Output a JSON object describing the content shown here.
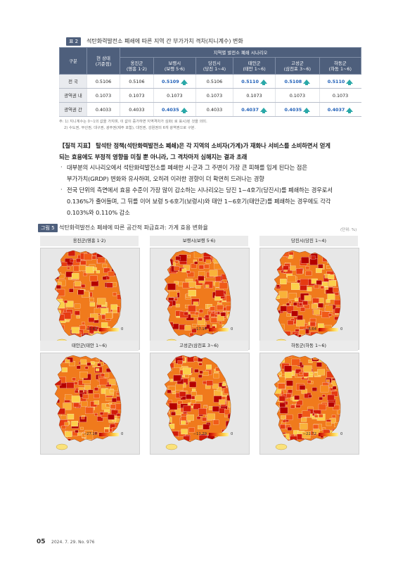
{
  "table2": {
    "tag": "표 2",
    "title": "석탄화력발전소 폐쇄에 따른 지역 간 부가가치 격차(지니계수) 변화",
    "header_category": "구분",
    "header_current": "현 상태\n(기준점)",
    "header_scenario": "지역별 발전소 폐쇄 시나리오",
    "scenarios": [
      "옹진군\n(영흥 1·2)",
      "보령시\n(보령 5·6)",
      "당진시\n(당진 1~4)",
      "태안군\n(태안 1~6)",
      "고성군\n(삼천포 3~6)",
      "하동군\n(하동 1~6)"
    ],
    "rows": [
      {
        "label": "전 국",
        "current": "0.5106",
        "values": [
          "0.5106",
          "0.5109",
          "0.5106",
          "0.5110",
          "0.5108",
          "0.5110"
        ],
        "increase": [
          false,
          true,
          false,
          true,
          true,
          true
        ]
      },
      {
        "label": "광역권 내",
        "current": "0.1073",
        "values": [
          "0.1073",
          "0.1073",
          "0.1073",
          "0.1073",
          "0.1073",
          "0.1073"
        ],
        "increase": [
          false,
          false,
          false,
          false,
          false,
          false
        ]
      },
      {
        "label": "광역권 간",
        "current": "0.4033",
        "values": [
          "0.4033",
          "0.4035",
          "0.4033",
          "0.4037",
          "0.4035",
          "0.4037"
        ],
        "increase": [
          false,
          true,
          false,
          true,
          true,
          true
        ]
      }
    ],
    "note1": "주: 1) 지니계수는 0~1의 값을 가지며, 이 값이 증가하면 지역격차가 심화(   로 표시)된 것을 의미.",
    "note2": "2) 수도권, 부산권, 대구권, 광주권(제주 포함), 대전권, 강원권의 6개 광역권으로 구분."
  },
  "body": {
    "heading_line1": "【질적 지표】 탈석탄 정책(석탄화력발전소 폐쇄)은 각 지역의 소비자(가계)가 재화나 서비스를 소비하면서 얻게",
    "heading_line2": "되는 효용에도 부정적 영향을 미칠 뿐 아니라, 그 격차마저 심해지는 결과 초래",
    "bullet_symbol": "·",
    "bullet1_line1": "대부분의 시나리오에서 석탄화력발전소를 폐쇄한 시·군과 그 주변이 가장 큰 피해를 입게 된다는 점은",
    "bullet1_line2": "부가가치(GRDP) 변화와 유사하며, 오히려 이러한 경향이 더 확연히 드러나는 경향",
    "bullet2_line1": "전국 단위의 측면에서 효용 수준이 가장 많이 감소하는 시나리오는 당진 1~4호기(당진시)를 폐쇄하는 경우로서",
    "bullet2_line2": "0.136%가 줄어들며, 그 뒤를 이어 보령 5·6호기(보령시)와 태안 1~6호기(태안군)를 폐쇄하는 경우에도 각각",
    "bullet2_line3": "0.103%와 0.110% 감소"
  },
  "figure5": {
    "tag": "그림 5",
    "title": "석탄화력발전소 폐쇄에 따른 공간적 파급효과: 가계 효용 변화율",
    "unit": "(단위: %)",
    "maps": [
      {
        "caption": "옹진군(영흥 1·2)",
        "min": "−0.43",
        "max": "0"
      },
      {
        "caption": "보령시(보령 5·6)",
        "min": "−17.14",
        "max": "0"
      },
      {
        "caption": "당진시(당진 1~4)",
        "min": "−8.64",
        "max": "0"
      },
      {
        "caption": "태안군(태안 1~6)",
        "min": "−27.18",
        "max": "0"
      },
      {
        "caption": "고성군(삼천포 3~6)",
        "min": "−11.29",
        "max": "0"
      },
      {
        "caption": "하동군(하동 1~6)",
        "min": "−22.72",
        "max": "0"
      }
    ]
  },
  "footer": {
    "page": "05",
    "issue": "2024. 7. 29.  No. 976"
  }
}
